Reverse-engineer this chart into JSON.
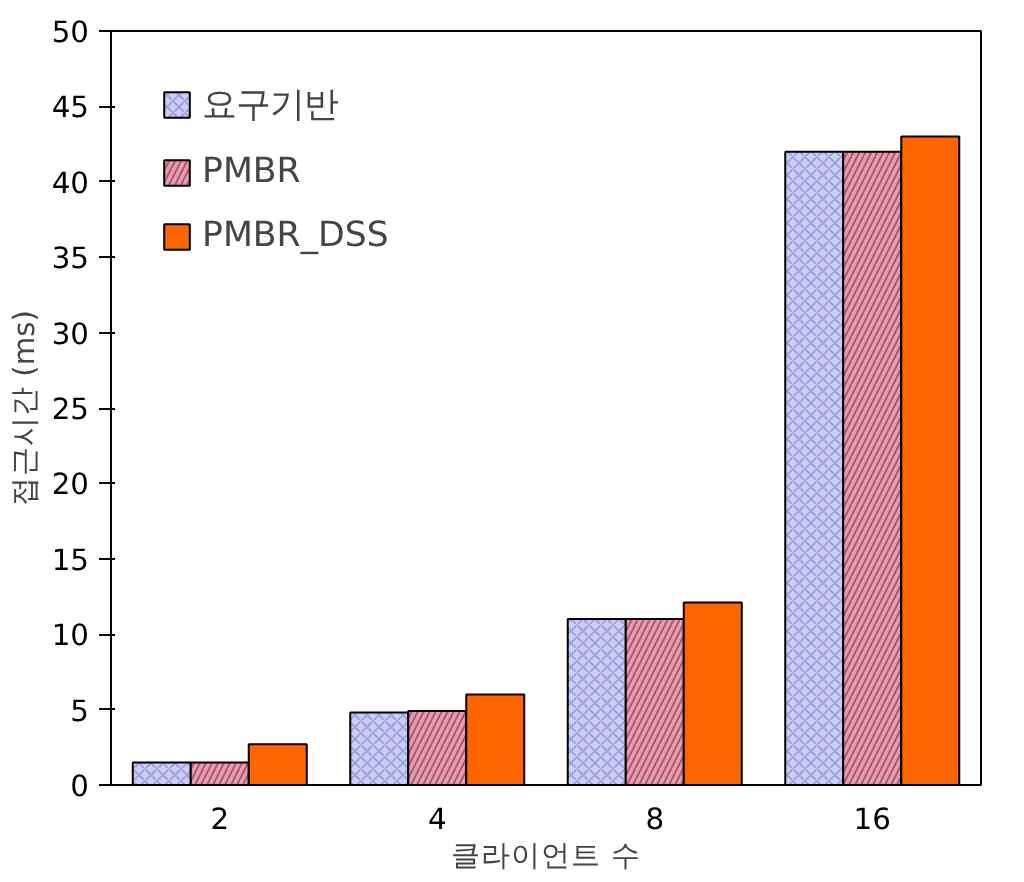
{
  "chart_data": {
    "type": "bar",
    "xlabel": "클라이언트 수",
    "ylabel": "접근시간 (ms)",
    "categories": [
      "2",
      "4",
      "8",
      "16"
    ],
    "series": [
      {
        "name": "요구기반",
        "color": "#ccccf5",
        "values": [
          1.5,
          4.8,
          11,
          42
        ]
      },
      {
        "name": "PMBR",
        "color": "#e0a0b0",
        "values": [
          1.5,
          4.9,
          11,
          42
        ]
      },
      {
        "name": "PMBR_DSS",
        "color": "#ff6600",
        "values": [
          2.7,
          6.0,
          12.1,
          43
        ]
      }
    ],
    "ylim": [
      0,
      50
    ],
    "yticks": [
      0,
      5,
      10,
      15,
      20,
      25,
      30,
      35,
      40,
      45,
      50
    ],
    "grid": false,
    "legend": "top left"
  }
}
